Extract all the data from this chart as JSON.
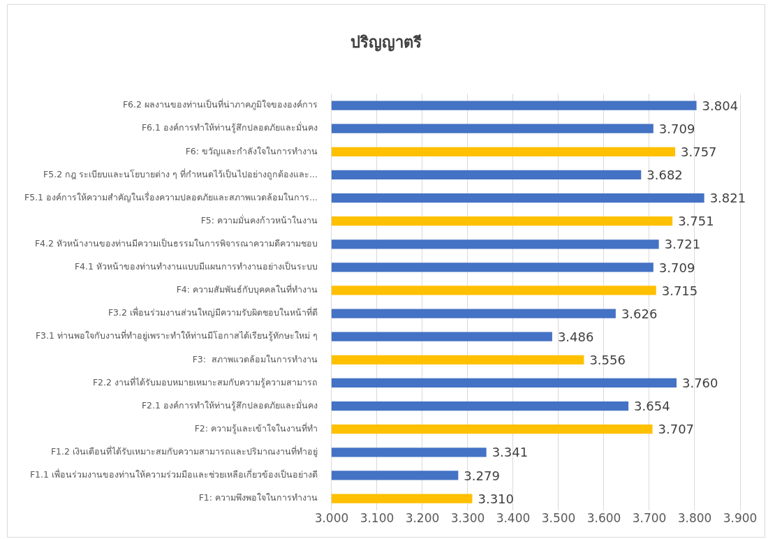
{
  "chart_data": {
    "type": "bar",
    "orientation": "horizontal",
    "title": "ปริญญาตรี",
    "categories": [
      "F6.2 ผลงานของท่านเป็นที่น่าภาคภูมิใจขององค์การ",
      "F6.1 องค์การทำให้ท่านรู้สึกปลอดภัยและมั่นคง",
      "F6: ขวัญและกำลังใจในการทำงาน",
      "F5.2 กฎ ระเบียบและนโยบายต่าง ๆ ที่กำหนดไว้เป็นไปอย่างถูกต้องและ...",
      "F5.1 องค์การให้ความสำคัญในเรื่องความปลอดภัยและสภาพแวดล้อมในการ...",
      "F5: ความมั่นคงก้าวหน้าในงาน",
      "F4.2 หัวหน้างานของท่านมีความเป็นธรรมในการพิจารณาความดีความชอบ",
      "F4.1 หัวหน้าของท่านทำงานแบบมีแผนการทำงานอย่างเป็นระบบ",
      "F4: ความสัมพันธ์กับบุคคลในที่ทำงาน",
      "F3.2 เพื่อนร่วมงานส่วนใหญ่มีความรับผิดชอบในหน้าที่ดี",
      "F3.1 ท่านพอใจกับงานที่ทำอยู่เพราะทำให้ท่านมีโอกาสได้เรียนรู้ทักษะใหม่ ๆ",
      "F3:  สภาพแวดล้อมในการทำงาน",
      "F2.2 งานที่ได้รับมอบหมายเหมาะสมกับความรู้ความสามารถ",
      "F2.1 องค์การทำให้ท่านรู้สึกปลอดภัยและมั่นคง",
      "F2: ความรู้และเข้าใจในงานที่ทำ",
      "F1.2 เงินเดือนที่ได้รับเหมาะสมกับความสามารถและปริมาณงานที่ทำอยู่",
      "F1.1 เพื่อนร่วมงานของท่านให้ความร่วมมือและช่วยเหลือเกี่ยวข้องเป็นอย่างดี",
      "F1: ความพึงพอใจในการทำงาน"
    ],
    "values": [
      3.804,
      3.709,
      3.757,
      3.682,
      3.821,
      3.751,
      3.721,
      3.709,
      3.715,
      3.626,
      3.486,
      3.556,
      3.76,
      3.654,
      3.707,
      3.341,
      3.279,
      3.31
    ],
    "value_labels": [
      "3.804",
      "3.709",
      "3.757",
      "3.682",
      "3.821",
      "3.751",
      "3.721",
      "3.709",
      "3.715",
      "3.626",
      "3.486",
      "3.556",
      "3.760",
      "3.654",
      "3.707",
      "3.341",
      "3.279",
      "3.310"
    ],
    "colors": [
      "#4472c4",
      "#4472c4",
      "#ffc000",
      "#4472c4",
      "#4472c4",
      "#ffc000",
      "#4472c4",
      "#4472c4",
      "#ffc000",
      "#4472c4",
      "#4472c4",
      "#ffc000",
      "#4472c4",
      "#4472c4",
      "#ffc000",
      "#4472c4",
      "#4472c4",
      "#ffc000"
    ],
    "xlim": [
      3.0,
      3.9
    ],
    "xticks": [
      {
        "value": 3.0,
        "label": "3.000"
      },
      {
        "value": 3.1,
        "label": "3.100"
      },
      {
        "value": 3.2,
        "label": "3.200"
      },
      {
        "value": 3.3,
        "label": "3.300"
      },
      {
        "value": 3.4,
        "label": "3.400"
      },
      {
        "value": 3.5,
        "label": "3.500"
      },
      {
        "value": 3.6,
        "label": "3.600"
      },
      {
        "value": 3.7,
        "label": "3.700"
      },
      {
        "value": 3.8,
        "label": "3.800"
      },
      {
        "value": 3.9,
        "label": "3.900"
      }
    ],
    "grid": "x",
    "legend": false
  }
}
